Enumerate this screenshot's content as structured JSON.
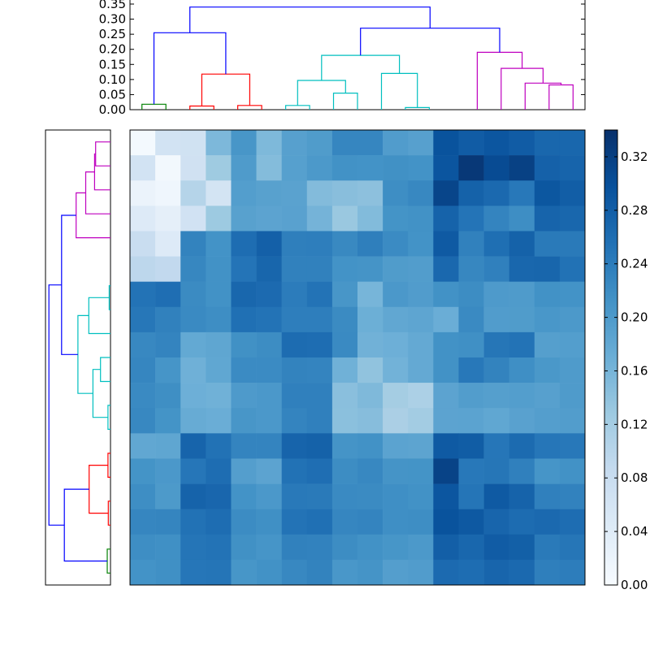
{
  "chart_data": [
    {
      "type": "dendrogram",
      "orientation": "top",
      "ylim": [
        0,
        0.35
      ],
      "ticks": [
        0.0,
        0.05,
        0.1,
        0.15,
        0.2,
        0.25,
        0.3,
        0.35
      ],
      "tick_labels": [
        "0.00",
        "0.05",
        "0.10",
        "0.15",
        "0.20",
        "0.25",
        "0.30",
        "0.35"
      ],
      "colors": {
        "root": "#0000ff",
        "green": "#008000",
        "red": "#ff0000",
        "cyan": "#00bfbf",
        "magenta": "#bf00bf"
      },
      "links": [
        {
          "x": [
            0.5,
            0.5,
            1.5,
            1.5
          ],
          "y": [
            0,
            0.018,
            0.018,
            0
          ],
          "color": "green"
        },
        {
          "x": [
            2.5,
            2.5,
            3.5,
            3.5
          ],
          "y": [
            0,
            0.012,
            0.012,
            0
          ],
          "color": "red"
        },
        {
          "x": [
            4.5,
            4.5,
            5.5,
            5.5
          ],
          "y": [
            0,
            0.014,
            0.014,
            0
          ],
          "color": "red"
        },
        {
          "x": [
            3.0,
            3.0,
            5.0,
            5.0
          ],
          "y": [
            0.012,
            0.118,
            0.118,
            0.014
          ],
          "color": "red"
        },
        {
          "x": [
            1.0,
            1.0,
            4.0,
            4.0
          ],
          "y": [
            0.018,
            0.255,
            0.255,
            0.118
          ],
          "color": "root"
        },
        {
          "x": [
            6.5,
            6.5,
            7.5,
            7.5
          ],
          "y": [
            0,
            0.014,
            0.014,
            0
          ],
          "color": "cyan"
        },
        {
          "x": [
            8.5,
            8.5,
            9.5,
            9.5
          ],
          "y": [
            0,
            0.055,
            0.055,
            0
          ],
          "color": "cyan"
        },
        {
          "x": [
            7.0,
            7.0,
            9.0,
            9.0
          ],
          "y": [
            0.014,
            0.097,
            0.097,
            0.055
          ],
          "color": "cyan"
        },
        {
          "x": [
            11.5,
            11.5,
            12.5,
            12.5
          ],
          "y": [
            0,
            0.007,
            0.007,
            0
          ],
          "color": "cyan"
        },
        {
          "x": [
            10.5,
            10.5,
            12.0,
            12.0
          ],
          "y": [
            0,
            0.12,
            0.12,
            0.007
          ],
          "color": "cyan"
        },
        {
          "x": [
            8.0,
            8.0,
            11.25,
            11.25
          ],
          "y": [
            0.097,
            0.18,
            0.18,
            0.12
          ],
          "color": "cyan"
        },
        {
          "x": [
            17.5,
            17.5,
            18.5,
            18.5
          ],
          "y": [
            0,
            0.082,
            0.082,
            0
          ],
          "color": "magenta"
        },
        {
          "x": [
            16.5,
            16.5,
            18.0,
            18.0
          ],
          "y": [
            0,
            0.088,
            0.088,
            0.082
          ],
          "color": "magenta"
        },
        {
          "x": [
            15.5,
            15.5,
            17.25,
            17.25
          ],
          "y": [
            0,
            0.137,
            0.137,
            0.088
          ],
          "color": "magenta"
        },
        {
          "x": [
            14.5,
            14.5,
            16.375,
            16.375
          ],
          "y": [
            0,
            0.19,
            0.19,
            0.137
          ],
          "color": "magenta"
        },
        {
          "x": [
            9.625,
            9.625,
            15.4375,
            15.4375
          ],
          "y": [
            0.18,
            0.27,
            0.27,
            0.19
          ],
          "color": "root"
        },
        {
          "x": [
            2.5,
            2.5,
            12.53,
            12.53
          ],
          "y": [
            0.255,
            0.34,
            0.34,
            0.27
          ],
          "color": "root"
        }
      ]
    },
    {
      "type": "dendrogram",
      "orientation": "left",
      "xlim": [
        0.35,
        0
      ],
      "colors": {
        "root": "#0000ff",
        "green": "#008000",
        "red": "#ff0000",
        "cyan": "#00bfbf",
        "magenta": "#bf00bf"
      },
      "links": [
        {
          "y": [
            0.5,
            0.5,
            1.5,
            1.5
          ],
          "x": [
            0,
            0.018,
            0.018,
            0
          ],
          "color": "green"
        },
        {
          "y": [
            2.5,
            2.5,
            3.5,
            3.5
          ],
          "x": [
            0,
            0.012,
            0.012,
            0
          ],
          "color": "red"
        },
        {
          "y": [
            4.5,
            4.5,
            5.5,
            5.5
          ],
          "x": [
            0,
            0.014,
            0.014,
            0
          ],
          "color": "red"
        },
        {
          "y": [
            3.0,
            3.0,
            5.0,
            5.0
          ],
          "x": [
            0.012,
            0.118,
            0.118,
            0.014
          ],
          "color": "red"
        },
        {
          "y": [
            1.0,
            1.0,
            4.0,
            4.0
          ],
          "x": [
            0.018,
            0.255,
            0.255,
            0.118
          ],
          "color": "root"
        },
        {
          "y": [
            6.5,
            6.5,
            7.5,
            7.5
          ],
          "x": [
            0,
            0.014,
            0.014,
            0
          ],
          "color": "cyan"
        },
        {
          "y": [
            8.5,
            8.5,
            9.5,
            9.5
          ],
          "x": [
            0,
            0.055,
            0.055,
            0
          ],
          "color": "cyan"
        },
        {
          "y": [
            7.0,
            7.0,
            9.0,
            9.0
          ],
          "x": [
            0.014,
            0.097,
            0.097,
            0.055
          ],
          "color": "cyan"
        },
        {
          "y": [
            11.5,
            11.5,
            12.5,
            12.5
          ],
          "x": [
            0,
            0.007,
            0.007,
            0
          ],
          "color": "cyan"
        },
        {
          "y": [
            10.5,
            10.5,
            12.0,
            12.0
          ],
          "x": [
            0,
            0.12,
            0.12,
            0.007
          ],
          "color": "cyan"
        },
        {
          "y": [
            8.0,
            8.0,
            11.25,
            11.25
          ],
          "x": [
            0.097,
            0.18,
            0.18,
            0.12
          ],
          "color": "cyan"
        },
        {
          "y": [
            17.5,
            17.5,
            18.5,
            18.5
          ],
          "x": [
            0,
            0.082,
            0.082,
            0
          ],
          "color": "magenta"
        },
        {
          "y": [
            16.5,
            16.5,
            18.0,
            18.0
          ],
          "x": [
            0,
            0.088,
            0.088,
            0.082
          ],
          "color": "magenta"
        },
        {
          "y": [
            15.5,
            15.5,
            17.25,
            17.25
          ],
          "x": [
            0,
            0.137,
            0.137,
            0.088
          ],
          "color": "magenta"
        },
        {
          "y": [
            14.5,
            14.5,
            16.375,
            16.375
          ],
          "x": [
            0,
            0.19,
            0.19,
            0.137
          ],
          "color": "magenta"
        },
        {
          "y": [
            9.625,
            9.625,
            15.4375,
            15.4375
          ],
          "x": [
            0.18,
            0.27,
            0.27,
            0.19
          ],
          "color": "root"
        },
        {
          "y": [
            2.5,
            2.5,
            12.53,
            12.53
          ],
          "x": [
            0.255,
            0.34,
            0.34,
            0.27
          ],
          "color": "root"
        }
      ]
    },
    {
      "type": "heatmap",
      "colormap": "Blues",
      "vmin": 0,
      "vmax": 0.34,
      "matrix_order": "rows listed top to bottom, columns left to right",
      "values": [
        [
          0.006,
          0.064,
          0.067,
          0.155,
          0.206,
          0.154,
          0.191,
          0.198,
          0.228,
          0.228,
          0.197,
          0.191,
          0.295,
          0.283,
          0.291,
          0.283,
          0.268,
          0.268
        ],
        [
          0.064,
          0.008,
          0.068,
          0.126,
          0.199,
          0.149,
          0.192,
          0.202,
          0.213,
          0.211,
          0.214,
          0.211,
          0.292,
          0.33,
          0.305,
          0.318,
          0.276,
          0.272
        ],
        [
          0.021,
          0.013,
          0.103,
          0.062,
          0.195,
          0.19,
          0.188,
          0.15,
          0.145,
          0.142,
          0.218,
          0.226,
          0.313,
          0.275,
          0.266,
          0.246,
          0.29,
          0.28
        ],
        [
          0.044,
          0.031,
          0.066,
          0.128,
          0.19,
          0.186,
          0.189,
          0.162,
          0.131,
          0.151,
          0.21,
          0.212,
          0.274,
          0.251,
          0.23,
          0.218,
          0.272,
          0.268
        ],
        [
          0.08,
          0.044,
          0.232,
          0.211,
          0.26,
          0.277,
          0.237,
          0.238,
          0.224,
          0.237,
          0.221,
          0.211,
          0.286,
          0.234,
          0.258,
          0.275,
          0.244,
          0.244
        ],
        [
          0.095,
          0.089,
          0.227,
          0.213,
          0.251,
          0.27,
          0.234,
          0.234,
          0.211,
          0.209,
          0.198,
          0.196,
          0.267,
          0.227,
          0.236,
          0.268,
          0.27,
          0.254
        ],
        [
          0.252,
          0.259,
          0.222,
          0.213,
          0.268,
          0.264,
          0.241,
          0.253,
          0.206,
          0.16,
          0.203,
          0.197,
          0.213,
          0.219,
          0.2,
          0.199,
          0.212,
          0.211
        ],
        [
          0.247,
          0.235,
          0.223,
          0.218,
          0.256,
          0.253,
          0.238,
          0.238,
          0.222,
          0.169,
          0.18,
          0.183,
          0.171,
          0.223,
          0.197,
          0.198,
          0.205,
          0.202
        ],
        [
          0.225,
          0.23,
          0.178,
          0.182,
          0.214,
          0.219,
          0.262,
          0.26,
          0.223,
          0.165,
          0.168,
          0.177,
          0.213,
          0.215,
          0.249,
          0.253,
          0.193,
          0.195
        ],
        [
          0.228,
          0.208,
          0.167,
          0.181,
          0.221,
          0.221,
          0.232,
          0.231,
          0.166,
          0.138,
          0.164,
          0.177,
          0.212,
          0.246,
          0.232,
          0.216,
          0.204,
          0.199
        ],
        [
          0.223,
          0.217,
          0.168,
          0.166,
          0.2,
          0.203,
          0.236,
          0.236,
          0.144,
          0.153,
          0.12,
          0.113,
          0.186,
          0.196,
          0.193,
          0.195,
          0.191,
          0.199
        ],
        [
          0.226,
          0.21,
          0.174,
          0.171,
          0.206,
          0.203,
          0.23,
          0.236,
          0.143,
          0.147,
          0.114,
          0.122,
          0.186,
          0.187,
          0.181,
          0.189,
          0.194,
          0.196
        ],
        [
          0.18,
          0.182,
          0.272,
          0.254,
          0.23,
          0.23,
          0.272,
          0.275,
          0.209,
          0.213,
          0.187,
          0.185,
          0.286,
          0.282,
          0.248,
          0.263,
          0.248,
          0.246
        ],
        [
          0.21,
          0.203,
          0.248,
          0.26,
          0.194,
          0.186,
          0.254,
          0.259,
          0.219,
          0.226,
          0.209,
          0.21,
          0.316,
          0.246,
          0.249,
          0.236,
          0.208,
          0.213
        ],
        [
          0.218,
          0.201,
          0.273,
          0.269,
          0.211,
          0.203,
          0.245,
          0.244,
          0.223,
          0.222,
          0.216,
          0.213,
          0.291,
          0.25,
          0.285,
          0.273,
          0.236,
          0.233
        ],
        [
          0.228,
          0.229,
          0.254,
          0.26,
          0.22,
          0.215,
          0.253,
          0.256,
          0.228,
          0.23,
          0.216,
          0.218,
          0.295,
          0.287,
          0.271,
          0.262,
          0.266,
          0.26
        ],
        [
          0.218,
          0.215,
          0.25,
          0.252,
          0.214,
          0.208,
          0.235,
          0.233,
          0.219,
          0.212,
          0.207,
          0.202,
          0.279,
          0.268,
          0.283,
          0.278,
          0.244,
          0.249
        ],
        [
          0.211,
          0.215,
          0.248,
          0.25,
          0.207,
          0.213,
          0.225,
          0.232,
          0.205,
          0.209,
          0.194,
          0.197,
          0.264,
          0.26,
          0.271,
          0.266,
          0.237,
          0.24
        ]
      ]
    },
    {
      "type": "colorbar",
      "colormap": "Blues",
      "range": [
        0.0,
        0.34
      ],
      "ticks": [
        0.0,
        0.04,
        0.08,
        0.12,
        0.16,
        0.2,
        0.24,
        0.28,
        0.32
      ],
      "tick_labels": [
        "0.00",
        "0.04",
        "0.08",
        "0.12",
        "0.16",
        "0.20",
        "0.24",
        "0.28",
        "0.32"
      ]
    }
  ]
}
